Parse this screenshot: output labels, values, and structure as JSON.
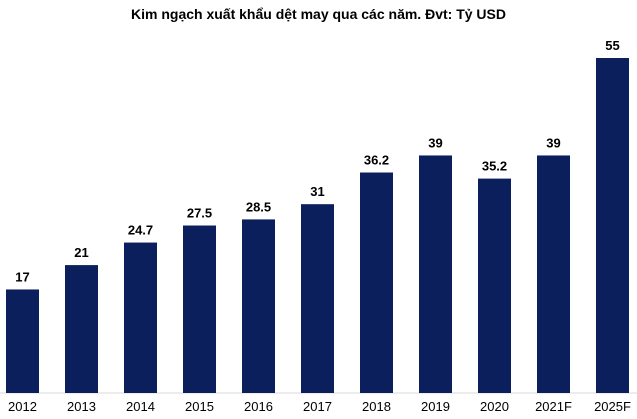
{
  "chart_data": {
    "type": "bar",
    "title": "Kim ngạch xuất khẩu dệt may qua các năm. Đvt: Tỷ USD",
    "categories": [
      "2012",
      "2013",
      "2014",
      "2015",
      "2016",
      "2017",
      "2018",
      "2019",
      "2020",
      "2021F",
      "2025F"
    ],
    "values": [
      17,
      21,
      24.7,
      27.5,
      28.5,
      31,
      36.2,
      39,
      35.2,
      39,
      55
    ],
    "value_labels": [
      "17",
      "21",
      "24.7",
      "27.5",
      "28.5",
      "31",
      "36.2",
      "39",
      "35.2",
      "39",
      "55"
    ],
    "ylim": [
      0,
      55
    ],
    "grid": false,
    "legend": "none",
    "colors": {
      "bar": "#0b1f5c"
    }
  }
}
